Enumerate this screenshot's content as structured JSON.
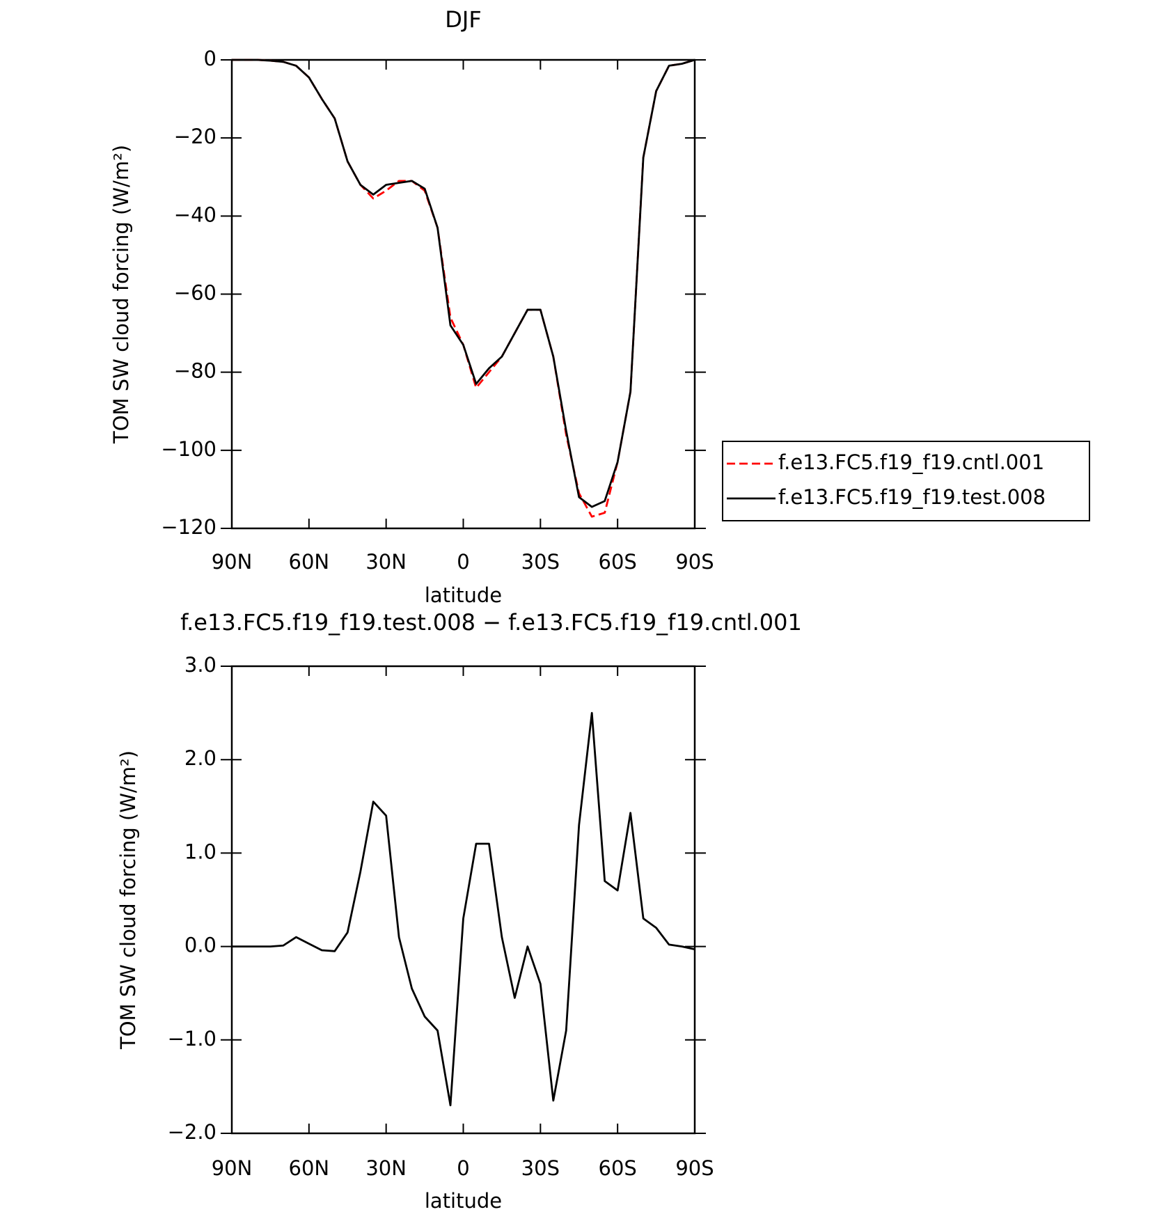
{
  "chart_data": [
    {
      "type": "line",
      "title": "DJF",
      "xlabel": "latitude",
      "ylabel": "TOM SW cloud forcing (W/m²)",
      "x": [
        90,
        85,
        80,
        75,
        70,
        65,
        60,
        55,
        50,
        45,
        40,
        35,
        30,
        25,
        20,
        15,
        10,
        5,
        0,
        -5,
        -10,
        -15,
        -20,
        -25,
        -30,
        -35,
        -40,
        -45,
        -50,
        -55,
        -60,
        -65,
        -70,
        -75,
        -80,
        -85,
        -90
      ],
      "series": [
        {
          "name": "f.e13.FC5.f19_f19.cntl.001",
          "color": "#ff0000",
          "dash": true,
          "values": [
            0,
            0,
            0,
            -0.2,
            -0.5,
            -1.5,
            -4.5,
            -10,
            -15,
            -26,
            -32,
            -35.5,
            -33.5,
            -31,
            -31,
            -33.5,
            -43,
            -66,
            -73,
            -84,
            -80,
            -76,
            -70,
            -64,
            -64,
            -76,
            -96,
            -111,
            -117,
            -116,
            -103,
            -85,
            -25,
            -8,
            -1.5,
            -1,
            0
          ]
        },
        {
          "name": "f.e13.FC5.f19_f19.test.008",
          "color": "#000000",
          "dash": false,
          "values": [
            0,
            0,
            0,
            -0.2,
            -0.5,
            -1.5,
            -4.5,
            -10,
            -15,
            -26,
            -32,
            -34.5,
            -32,
            -31.5,
            -31,
            -33,
            -43,
            -68,
            -73,
            -83,
            -79,
            -76,
            -70,
            -64,
            -64,
            -76,
            -95,
            -112,
            -114.5,
            -113,
            -103,
            -85,
            -25,
            -8,
            -1.5,
            -1,
            0
          ]
        }
      ],
      "xlim": [
        90,
        -90
      ],
      "xticks": [
        {
          "value": 90,
          "label": "90N"
        },
        {
          "value": 60,
          "label": "60N"
        },
        {
          "value": 30,
          "label": "30N"
        },
        0,
        {
          "value": -30,
          "label": "30S"
        },
        {
          "value": -60,
          "label": "60S"
        },
        {
          "value": -90,
          "label": "90S"
        }
      ],
      "ylim": [
        -120,
        0
      ],
      "yticks": [
        0,
        {
          "value": -20,
          "label": "−20"
        },
        {
          "value": -40,
          "label": "−40"
        },
        {
          "value": -60,
          "label": "−60"
        },
        {
          "value": -80,
          "label": "−80"
        },
        {
          "value": -100,
          "label": "−100"
        },
        {
          "value": -120,
          "label": "−120"
        }
      ],
      "legend": "right",
      "grid": false
    },
    {
      "type": "line",
      "title": "f.e13.FC5.f19_f19.test.008 − f.e13.FC5.f19_f19.cntl.001",
      "xlabel": "latitude",
      "ylabel": "TOM SW cloud forcing (W/m²)",
      "x": [
        90,
        85,
        80,
        75,
        70,
        65,
        60,
        55,
        50,
        45,
        40,
        35,
        30,
        25,
        20,
        15,
        10,
        5,
        0,
        -5,
        -10,
        -15,
        -20,
        -25,
        -30,
        -35,
        -40,
        -45,
        -50,
        -55,
        -60,
        -65,
        -70,
        -75,
        -80,
        -85,
        -90
      ],
      "color": "#000000",
      "values": [
        0,
        0,
        0,
        0,
        0.01,
        0.1,
        0.03,
        -0.04,
        -0.05,
        0.15,
        0.8,
        1.55,
        1.4,
        0.1,
        -0.45,
        -0.75,
        -0.9,
        -1.7,
        0.3,
        1.1,
        1.1,
        0.1,
        -0.55,
        0,
        -0.4,
        -1.65,
        -0.9,
        1.3,
        2.5,
        0.7,
        0.6,
        1.43,
        0.3,
        0.2,
        0.02,
        0,
        -0.03
      ],
      "xlim": [
        90,
        -90
      ],
      "xticks": [
        {
          "value": 90,
          "label": "90N"
        },
        {
          "value": 60,
          "label": "60N"
        },
        {
          "value": 30,
          "label": "30N"
        },
        0,
        {
          "value": -30,
          "label": "30S"
        },
        {
          "value": -60,
          "label": "60S"
        },
        {
          "value": -90,
          "label": "90S"
        }
      ],
      "ylim": [
        -2,
        3
      ],
      "yticks": [
        {
          "value": 3,
          "label": "3.0"
        },
        {
          "value": 2,
          "label": "2.0"
        },
        {
          "value": 1,
          "label": "1.0"
        },
        {
          "value": 0,
          "label": "0.0"
        },
        {
          "value": -1,
          "label": "−1.0"
        },
        {
          "value": -2,
          "label": "−2.0"
        }
      ],
      "grid": false
    }
  ]
}
